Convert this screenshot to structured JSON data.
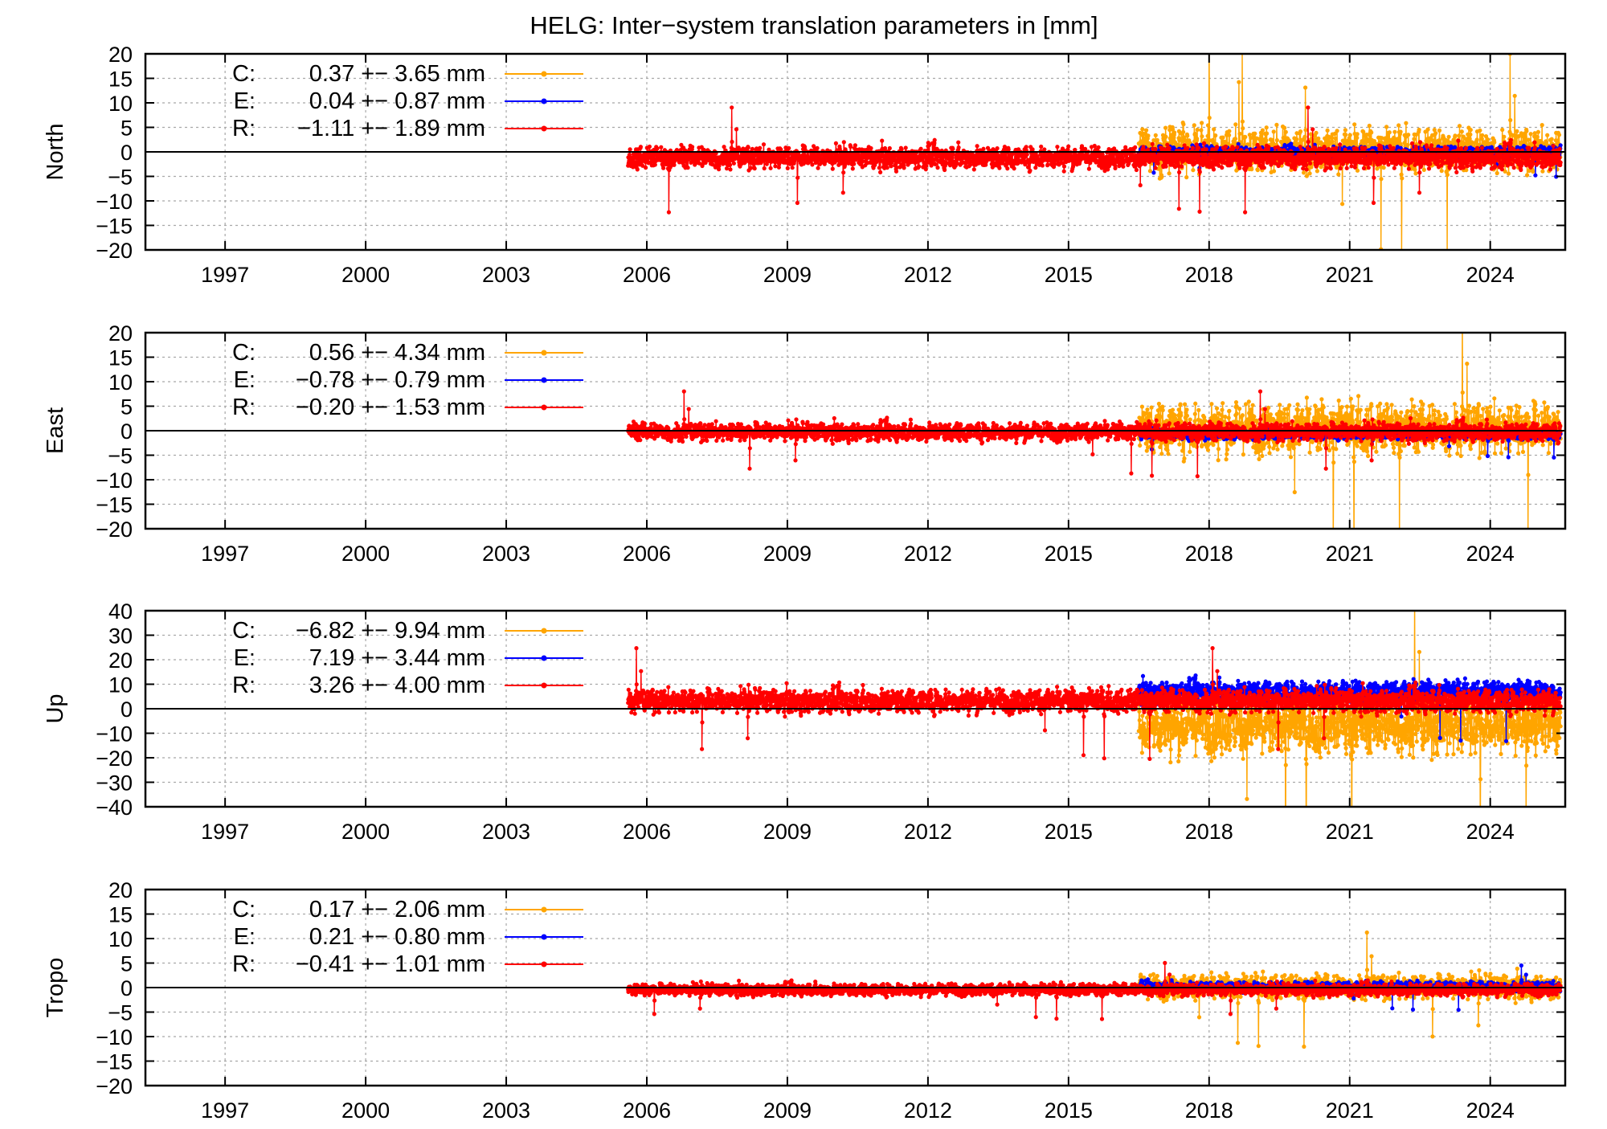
{
  "title": "HELG: Inter−system translation parameters in [mm]",
  "colors": {
    "C": "#ffa500",
    "E": "#0000ff",
    "R": "#ff0000",
    "grid": "#a8a8a8",
    "axis": "#000000"
  },
  "chart_data": [
    {
      "type": "scatter",
      "ylabel": "North",
      "ylim": [
        -20,
        20
      ],
      "yticks": [
        -20,
        -15,
        -10,
        -5,
        0,
        5,
        10,
        15,
        20
      ],
      "xlim": [
        1995.3,
        2025.6
      ],
      "xticks": [
        1997,
        2000,
        2003,
        2006,
        2009,
        2012,
        2015,
        2018,
        2021,
        2024
      ],
      "grid": true,
      "legend_position": "top-left",
      "series": [
        {
          "name": "C",
          "label": "C:",
          "stats": "0.37 +− 3.65 mm",
          "x_start": 2016.5,
          "x_end": 2025.5,
          "center": 0.4,
          "spread": 3.65
        },
        {
          "name": "E",
          "label": "E:",
          "stats": "0.04 +− 0.87 mm",
          "x_start": 2016.5,
          "x_end": 2025.5,
          "center": 0.04,
          "spread": 0.87
        },
        {
          "name": "R",
          "label": "R:",
          "stats": "−1.11 +− 1.89 mm",
          "x_start": 2005.6,
          "x_end": 2025.5,
          "center": -1.1,
          "spread": 1.89
        }
      ]
    },
    {
      "type": "scatter",
      "ylabel": "East",
      "ylim": [
        -20,
        20
      ],
      "yticks": [
        -20,
        -15,
        -10,
        -5,
        0,
        5,
        10,
        15,
        20
      ],
      "xlim": [
        1995.3,
        2025.6
      ],
      "xticks": [
        1997,
        2000,
        2003,
        2006,
        2009,
        2012,
        2015,
        2018,
        2021,
        2024
      ],
      "grid": true,
      "legend_position": "top-left",
      "series": [
        {
          "name": "C",
          "label": "C:",
          "stats": "0.56 +− 4.34 mm",
          "x_start": 2016.5,
          "x_end": 2025.5,
          "center": 0.56,
          "spread": 4.34
        },
        {
          "name": "E",
          "label": "E:",
          "stats": "−0.78 +− 0.79 mm",
          "x_start": 2016.5,
          "x_end": 2025.5,
          "center": -0.78,
          "spread": 0.79
        },
        {
          "name": "R",
          "label": "R:",
          "stats": "−0.20 +− 1.53 mm",
          "x_start": 2005.6,
          "x_end": 2025.5,
          "center": -0.2,
          "spread": 1.53
        }
      ]
    },
    {
      "type": "scatter",
      "ylabel": "Up",
      "ylim": [
        -40,
        40
      ],
      "yticks": [
        -40,
        -30,
        -20,
        -10,
        0,
        10,
        20,
        30,
        40
      ],
      "xlim": [
        1995.3,
        2025.6
      ],
      "xticks": [
        1997,
        2000,
        2003,
        2006,
        2009,
        2012,
        2015,
        2018,
        2021,
        2024
      ],
      "grid": true,
      "legend_position": "top-left",
      "series": [
        {
          "name": "C",
          "label": "C:",
          "stats": "−6.82 +− 9.94 mm",
          "x_start": 2016.5,
          "x_end": 2025.5,
          "center": -6.82,
          "spread": 9.94
        },
        {
          "name": "E",
          "label": "E:",
          "stats": "7.19 +− 3.44 mm",
          "x_start": 2016.5,
          "x_end": 2025.5,
          "center": 7.19,
          "spread": 3.44
        },
        {
          "name": "R",
          "label": "R:",
          "stats": "3.26 +− 4.00 mm",
          "x_start": 2005.6,
          "x_end": 2025.5,
          "center": 3.26,
          "spread": 4.0
        }
      ]
    },
    {
      "type": "scatter",
      "ylabel": "Tropo",
      "ylim": [
        -20,
        20
      ],
      "yticks": [
        -20,
        -15,
        -10,
        -5,
        0,
        5,
        10,
        15,
        20
      ],
      "xlim": [
        1995.3,
        2025.6
      ],
      "xticks": [
        1997,
        2000,
        2003,
        2006,
        2009,
        2012,
        2015,
        2018,
        2021,
        2024
      ],
      "grid": true,
      "legend_position": "top-left",
      "series": [
        {
          "name": "C",
          "label": "C:",
          "stats": "0.17 +− 2.06 mm",
          "x_start": 2016.5,
          "x_end": 2025.5,
          "center": 0.17,
          "spread": 2.06
        },
        {
          "name": "E",
          "label": "E:",
          "stats": "0.21 +− 0.80 mm",
          "x_start": 2016.5,
          "x_end": 2025.5,
          "center": 0.21,
          "spread": 0.8
        },
        {
          "name": "R",
          "label": "R:",
          "stats": "−0.41 +− 1.01 mm",
          "x_start": 2005.6,
          "x_end": 2025.5,
          "center": -0.41,
          "spread": 1.01
        }
      ]
    }
  ]
}
